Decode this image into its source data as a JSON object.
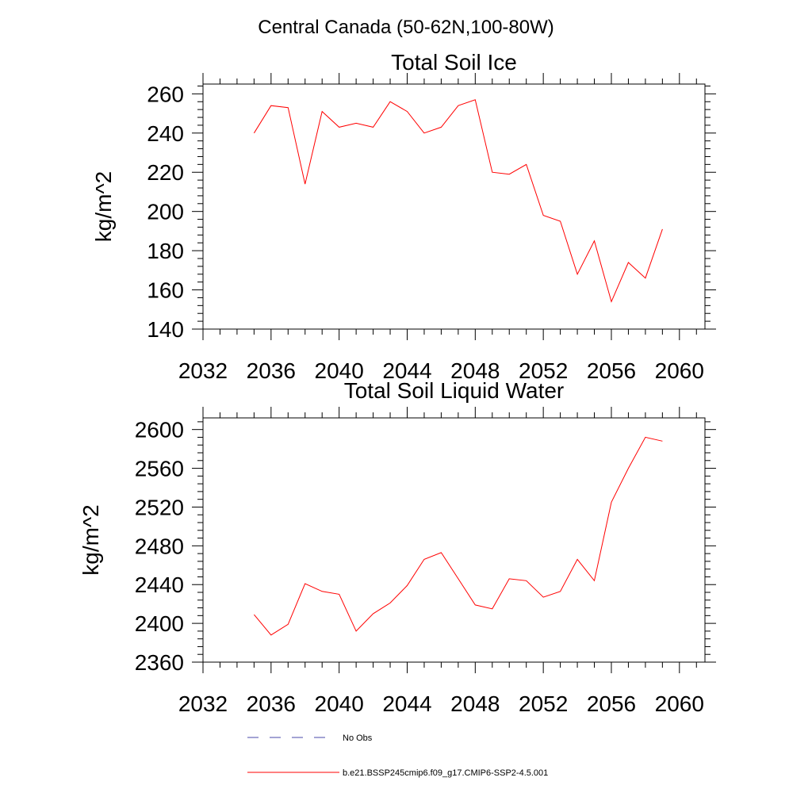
{
  "figure_title": "Central Canada (50-62N,100-80W)",
  "colors": {
    "series": "#ff0000",
    "no_obs": "#4a4aa8",
    "axis": "#000000"
  },
  "legend": {
    "placement": "bottom",
    "entries": [
      {
        "label": "No Obs",
        "style": "dashed",
        "color": "#4a4aa8"
      },
      {
        "label": "b.e21.BSSP245cmip6.f09_g17.CMIP6-SSP2-4.5.001",
        "style": "solid",
        "color": "#ff0000"
      }
    ]
  },
  "chart_data": [
    {
      "type": "line",
      "title": "Total Soil Ice",
      "ylabel": "kg/m^2",
      "xlabel": "",
      "xlim": [
        2032,
        2061.5
      ],
      "ylim": [
        140,
        265
      ],
      "xticks": [
        2032,
        2036,
        2040,
        2044,
        2048,
        2052,
        2056,
        2060
      ],
      "yticks": [
        140,
        160,
        180,
        200,
        220,
        240,
        260
      ],
      "x": [
        2035,
        2036,
        2037,
        2038,
        2039,
        2040,
        2041,
        2042,
        2043,
        2044,
        2045,
        2046,
        2047,
        2048,
        2049,
        2050,
        2051,
        2052,
        2053,
        2054,
        2055,
        2056,
        2057,
        2058,
        2059
      ],
      "series": [
        {
          "name": "b.e21.BSSP245cmip6.f09_g17.CMIP6-SSP2-4.5.001",
          "values": [
            240,
            254,
            253,
            214,
            251,
            243,
            245,
            243,
            256,
            251,
            240,
            243,
            254,
            257,
            220,
            219,
            224,
            198,
            195,
            168,
            185,
            154,
            174,
            166,
            191
          ]
        }
      ]
    },
    {
      "type": "line",
      "title": "Total Soil Liquid Water",
      "ylabel": "kg/m^2",
      "xlabel": "",
      "xlim": [
        2032,
        2061.5
      ],
      "ylim": [
        2360,
        2612
      ],
      "xticks": [
        2032,
        2036,
        2040,
        2044,
        2048,
        2052,
        2056,
        2060
      ],
      "yticks": [
        2360,
        2400,
        2440,
        2480,
        2520,
        2560,
        2600
      ],
      "x": [
        2035,
        2036,
        2037,
        2038,
        2039,
        2040,
        2041,
        2042,
        2043,
        2044,
        2045,
        2046,
        2047,
        2048,
        2049,
        2050,
        2051,
        2052,
        2053,
        2054,
        2055,
        2056,
        2057,
        2058,
        2059
      ],
      "series": [
        {
          "name": "b.e21.BSSP245cmip6.f09_g17.CMIP6-SSP2-4.5.001",
          "values": [
            2409,
            2388,
            2399,
            2441,
            2433,
            2430,
            2392,
            2410,
            2421,
            2439,
            2466,
            2473,
            2446,
            2419,
            2415,
            2446,
            2444,
            2427,
            2433,
            2466,
            2444,
            2525,
            2560,
            2592,
            2588
          ]
        }
      ]
    }
  ]
}
